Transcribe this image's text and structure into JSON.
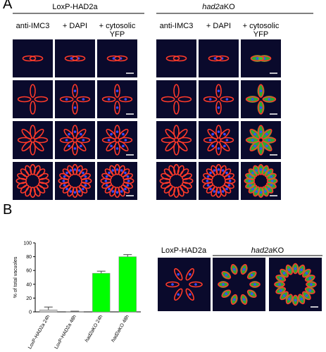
{
  "panel_a": {
    "label": "A",
    "groups": [
      {
        "title": "LoxP-HAD2a",
        "columns": [
          "anti-IMC3",
          "+ DAPI",
          "+ cytosolic YFP"
        ]
      },
      {
        "title": "had2aKO",
        "columns": [
          "anti-IMC3",
          "+ DAPI",
          "+ cytosolic YFP"
        ]
      }
    ]
  },
  "panel_b": {
    "label": "B",
    "image_titles": [
      "LoxP-HAD2a",
      "had2aKO"
    ]
  },
  "chart_data": {
    "type": "bar",
    "y_label": "% of total vacuoles",
    "categories": [
      "LoxP-HAD2a 24h",
      "LoxP-HAD2a 48h",
      "had2aKO 24h",
      "had2aKO 48h"
    ],
    "values": [
      3,
      0.5,
      56,
      80
    ],
    "errors": [
      4,
      0.5,
      3,
      3
    ],
    "colors": [
      "#c8c8c8",
      "#c8c8c8",
      "#00ff00",
      "#00ff00"
    ],
    "ylim": [
      0,
      100
    ],
    "yticks": [
      0,
      20,
      40,
      60,
      80,
      100
    ]
  }
}
